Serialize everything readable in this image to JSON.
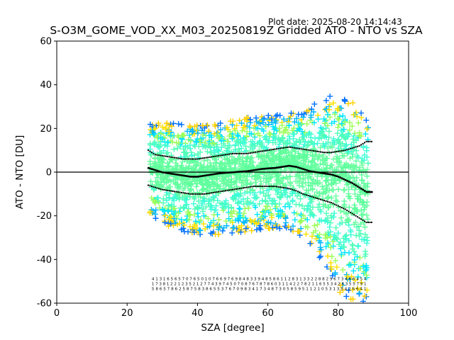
{
  "header": {
    "plot_date": "Plot date: 2025-08-20 14:14:43",
    "title": "S-O3M_GOME_VOD_XX_M03_20250819Z Gridded ATO - NTO vs SZA"
  },
  "chart_data": {
    "type": "scatter",
    "title": "S-O3M_GOME_VOD_XX_M03_20250819Z Gridded ATO - NTO vs SZA",
    "xlabel": "SZA [degree]",
    "ylabel": "ATO - NTO [DU]",
    "xlim": [
      0,
      100
    ],
    "ylim": [
      -60,
      60
    ],
    "xticks": [
      0,
      20,
      40,
      60,
      80,
      100
    ],
    "yticks": [
      -60,
      -40,
      -20,
      0,
      20,
      40,
      60
    ],
    "grid": false,
    "reference_line": 0,
    "scatter_envelope": {
      "x": [
        27,
        30,
        35,
        40,
        45,
        50,
        55,
        60,
        65,
        70,
        72,
        75,
        78,
        80,
        83,
        86,
        88
      ],
      "upper": [
        22,
        23,
        22,
        22,
        22,
        24,
        26,
        26,
        27,
        28,
        30,
        33,
        35,
        34,
        33,
        30,
        25
      ],
      "lower": [
        -20,
        -24,
        -27,
        -29,
        -29,
        -28,
        -27,
        -26,
        -26,
        -30,
        -34,
        -40,
        -48,
        -55,
        -58,
        -60,
        -60
      ]
    },
    "median": {
      "x": [
        26,
        28,
        30,
        32,
        34,
        36,
        38,
        40,
        42,
        44,
        46,
        48,
        50,
        52,
        54,
        56,
        58,
        60,
        62,
        64,
        66,
        68,
        70,
        72,
        74,
        76,
        78,
        80,
        82,
        84,
        86,
        88
      ],
      "y": [
        2,
        1,
        0,
        -0.5,
        -1,
        -1.5,
        -2,
        -2,
        -1.5,
        -1,
        -0.5,
        -0.2,
        0,
        0.3,
        0.5,
        1,
        1.5,
        1.8,
        2,
        2.5,
        3,
        2.5,
        1.5,
        0.5,
        0,
        -0.5,
        -1,
        -2,
        -3.5,
        -5,
        -7,
        -9
      ]
    },
    "percentile_upper": {
      "x": [
        26,
        28,
        30,
        32,
        34,
        36,
        38,
        40,
        42,
        44,
        46,
        48,
        50,
        52,
        54,
        56,
        58,
        60,
        62,
        64,
        66,
        68,
        70,
        72,
        74,
        76,
        78,
        80,
        82,
        84,
        86,
        88
      ],
      "y": [
        10,
        8,
        7.5,
        7,
        6.5,
        6,
        6,
        6,
        6.5,
        7,
        7.5,
        8,
        8.5,
        8.5,
        8.5,
        9,
        9.5,
        10,
        10.5,
        11,
        11.5,
        11,
        10.5,
        10,
        9.5,
        9,
        9,
        9.5,
        10,
        11,
        12,
        14
      ]
    },
    "percentile_lower": {
      "x": [
        26,
        28,
        30,
        32,
        34,
        36,
        38,
        40,
        42,
        44,
        46,
        48,
        50,
        52,
        54,
        56,
        58,
        60,
        62,
        64,
        66,
        68,
        70,
        72,
        74,
        76,
        78,
        80,
        82,
        84,
        86,
        88
      ],
      "y": [
        -6,
        -7,
        -8,
        -8.5,
        -9,
        -9.5,
        -10,
        -10,
        -10,
        -9.5,
        -9,
        -8.5,
        -8,
        -7.5,
        -7,
        -6.5,
        -6.5,
        -6.5,
        -6.5,
        -7,
        -7.5,
        -8.5,
        -10,
        -11,
        -12,
        -13,
        -14,
        -15.5,
        -17,
        -19,
        -21,
        -23
      ]
    },
    "count_label_rows": [
      {
        "y": -49.5,
        "text": "4 1 3 1 6 5 6 5 7 0 7 6 5 0 1 0 7 6 6 9 7 6 9 8 4 8 3 3 9 4 8 5 8 6 1 1 2 8 3 1 3 3 2 2 8 8 2 9 6 7 3 4 6 6 4 5 4"
      },
      {
        "y": -51.8,
        "text": "1 7 3 8 1 2 2 1 2 3 5 2 1 2 7 7 4 3 9 7 4 5 0 7 0 8 7 6 7 8 7 8 6 0 3 1 1 4 2 2 7 8 2 1 1 6 5 5 3 4 2 8 3 5 5 7 9 1"
      },
      {
        "y": -54,
        "text": "5 8 6 5 7 8 6 2 5 8 7 5 8 3 8 6 5 5 3 7 6 7 0 9 8 3 4 1 7 3 4 8 7 3 0 5 8 5 9 5 1 1 2 1 0 5 3 1 3 5 4 2 6 6 4 1"
      }
    ]
  }
}
